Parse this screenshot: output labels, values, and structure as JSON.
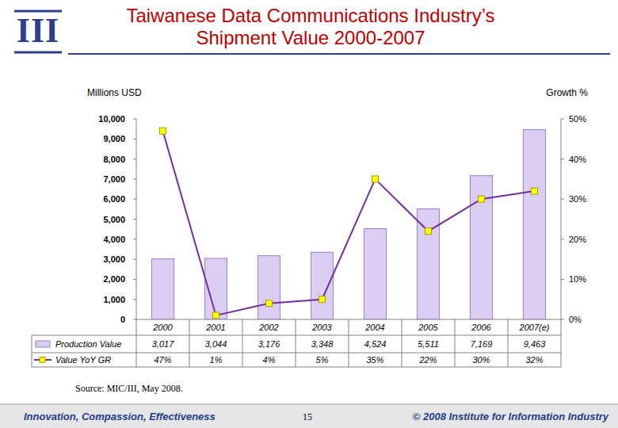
{
  "page": {
    "logo": "III",
    "source": "Source: MIC/III, May 2008.",
    "slogan": "Innovation, Compassion, Effectiveness",
    "page_number": 15,
    "copyright": "© 2008 Institute for Information Industry"
  },
  "chart_data": {
    "type": "bar",
    "title": "Taiwanese Data Communications Industry’s Shipment Value 2000-2007",
    "y_label": "Millions USD",
    "y2_label": "Growth %",
    "categories": [
      "2000",
      "2001",
      "2002",
      "2003",
      "2004",
      "2005",
      "2006",
      "2007(e)"
    ],
    "series": [
      {
        "name": "Production Value",
        "type": "bar",
        "color": "#dccdf3",
        "values": [
          3017,
          3044,
          3176,
          3348,
          4524,
          5511,
          7169,
          9463
        ],
        "value_labels": [
          "3,017",
          "3,044",
          "3,176",
          "3,348",
          "4,524",
          "5,511",
          "7,169",
          "9,463"
        ]
      },
      {
        "name": "Value YoY GR",
        "type": "line",
        "axis": "y2",
        "color": "#7030a0",
        "marker": "square",
        "line_style": "solid",
        "values": [
          47,
          1,
          4,
          5,
          35,
          22,
          30,
          32
        ],
        "value_labels": [
          "47%",
          "1%",
          "4%",
          "5%",
          "35%",
          "22%",
          "30%",
          "32%"
        ]
      }
    ],
    "ylim": [
      0,
      10000
    ],
    "yticks": [
      0,
      {
        "value": 1000,
        "label": "1,000"
      },
      {
        "value": 2000,
        "label": "2,000"
      },
      {
        "value": 3000,
        "label": "3,000"
      },
      {
        "value": 4000,
        "label": "4,000"
      },
      {
        "value": 5000,
        "label": "5,000"
      },
      {
        "value": 6000,
        "label": "6,000"
      },
      {
        "value": 7000,
        "label": "7,000"
      },
      {
        "value": 8000,
        "label": "8,000"
      },
      {
        "value": 9000,
        "label": "9,000"
      },
      {
        "value": 10000,
        "label": "10,000"
      }
    ],
    "y2lim": [
      0,
      50
    ],
    "y2ticks": [
      {
        "value": 0,
        "label": "0%"
      },
      {
        "value": 10,
        "label": "10%"
      },
      {
        "value": 20,
        "label": "20%"
      },
      {
        "value": 30,
        "label": "30%"
      },
      {
        "value": 40,
        "label": "40%"
      },
      {
        "value": 50,
        "label": "50%"
      }
    ],
    "grid": false
  }
}
